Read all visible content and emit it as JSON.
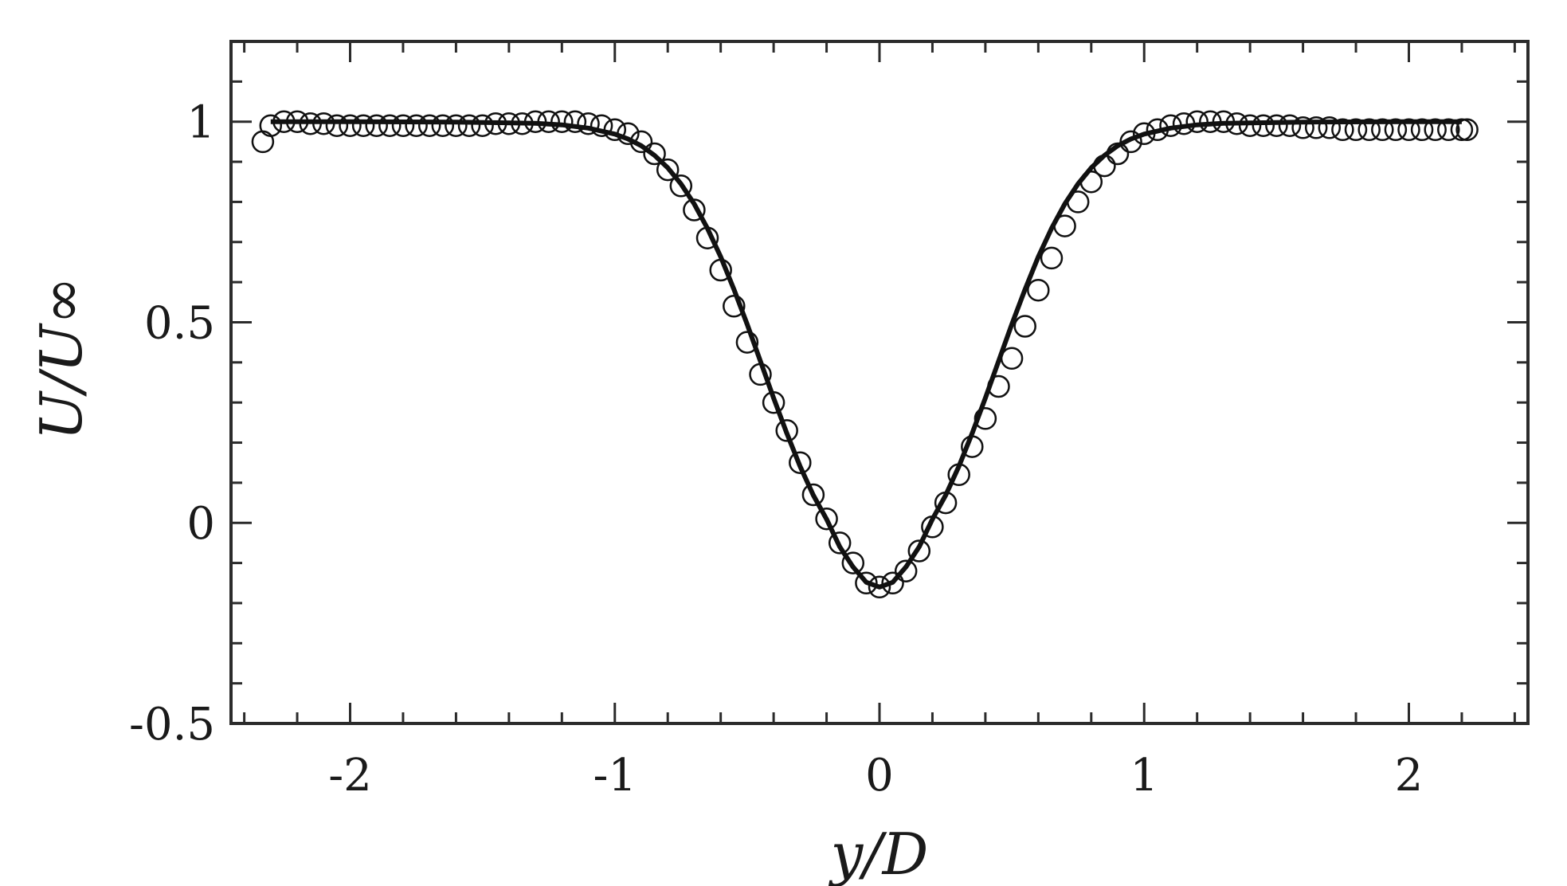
{
  "chart_data": {
    "type": "scatter",
    "xlabel": "y/D",
    "ylabel": "U/U∞",
    "xlim": [
      -2.45,
      2.45
    ],
    "ylim": [
      -0.5,
      1.2
    ],
    "x_ticks": [
      {
        "value": -2,
        "label": "-2"
      },
      {
        "value": -1,
        "label": "-1"
      },
      {
        "value": 0,
        "label": "0"
      },
      {
        "value": 1,
        "label": "1"
      },
      {
        "value": 2,
        "label": "2"
      }
    ],
    "y_ticks": [
      {
        "value": -0.5,
        "label": "-0.5"
      },
      {
        "value": 0,
        "label": "0"
      },
      {
        "value": 0.5,
        "label": "0.5"
      },
      {
        "value": 1,
        "label": "1"
      }
    ],
    "x_minor_step": 0.2,
    "y_minor_step": 0.1,
    "grid": false,
    "series": [
      {
        "marker": "open-circle",
        "color": "#111111",
        "x": [
          -2.33,
          -2.3,
          -2.25,
          -2.2,
          -2.15,
          -2.1,
          -2.05,
          -2.0,
          -1.95,
          -1.9,
          -1.85,
          -1.8,
          -1.75,
          -1.7,
          -1.65,
          -1.6,
          -1.55,
          -1.5,
          -1.45,
          -1.4,
          -1.35,
          -1.3,
          -1.25,
          -1.2,
          -1.15,
          -1.1,
          -1.05,
          -1.0,
          -0.95,
          -0.9,
          -0.85,
          -0.8,
          -0.75,
          -0.7,
          -0.65,
          -0.6,
          -0.55,
          -0.5,
          -0.45,
          -0.4,
          -0.35,
          -0.3,
          -0.25,
          -0.2,
          -0.15,
          -0.1,
          -0.05,
          0.0,
          0.05,
          0.1,
          0.15,
          0.2,
          0.25,
          0.3,
          0.35,
          0.4,
          0.45,
          0.5,
          0.55,
          0.6,
          0.65,
          0.7,
          0.75,
          0.8,
          0.85,
          0.9,
          0.95,
          1.0,
          1.05,
          1.1,
          1.15,
          1.2,
          1.25,
          1.3,
          1.35,
          1.4,
          1.45,
          1.5,
          1.55,
          1.6,
          1.65,
          1.7,
          1.75,
          1.8,
          1.85,
          1.9,
          1.95,
          2.0,
          2.05,
          2.1,
          2.15,
          2.2,
          2.22
        ],
        "y": [
          0.95,
          0.99,
          1.0,
          1.0,
          0.995,
          0.995,
          0.99,
          0.99,
          0.99,
          0.99,
          0.99,
          0.99,
          0.99,
          0.99,
          0.99,
          0.99,
          0.99,
          0.99,
          0.995,
          0.995,
          0.995,
          1.0,
          1.0,
          1.0,
          1.0,
          0.995,
          0.99,
          0.98,
          0.97,
          0.95,
          0.92,
          0.88,
          0.84,
          0.78,
          0.71,
          0.63,
          0.54,
          0.45,
          0.37,
          0.3,
          0.23,
          0.15,
          0.07,
          0.01,
          -0.05,
          -0.1,
          -0.15,
          -0.16,
          -0.15,
          -0.12,
          -0.07,
          -0.01,
          0.05,
          0.12,
          0.19,
          0.26,
          0.34,
          0.41,
          0.49,
          0.58,
          0.66,
          0.74,
          0.8,
          0.85,
          0.89,
          0.92,
          0.95,
          0.97,
          0.98,
          0.99,
          0.995,
          1.0,
          1.0,
          1.0,
          0.995,
          0.99,
          0.99,
          0.99,
          0.99,
          0.985,
          0.985,
          0.985,
          0.98,
          0.98,
          0.98,
          0.98,
          0.98,
          0.98,
          0.98,
          0.98,
          0.98,
          0.98,
          0.98
        ]
      },
      {
        "type": "line",
        "color": "#111111",
        "x": [
          -2.3,
          -2.0,
          -1.6,
          -1.3,
          -1.2,
          -1.1,
          -1.0,
          -0.95,
          -0.9,
          -0.85,
          -0.8,
          -0.75,
          -0.7,
          -0.65,
          -0.6,
          -0.55,
          -0.5,
          -0.45,
          -0.4,
          -0.35,
          -0.3,
          -0.25,
          -0.2,
          -0.15,
          -0.1,
          -0.05,
          0.0,
          0.05,
          0.1,
          0.15,
          0.2,
          0.25,
          0.3,
          0.35,
          0.4,
          0.45,
          0.5,
          0.55,
          0.6,
          0.65,
          0.7,
          0.75,
          0.8,
          0.85,
          0.9,
          0.95,
          1.0,
          1.1,
          1.2,
          1.3,
          1.6,
          2.0,
          2.2
        ],
        "y": [
          1.0,
          1.0,
          0.999,
          0.996,
          0.992,
          0.984,
          0.969,
          0.957,
          0.94,
          0.916,
          0.885,
          0.845,
          0.795,
          0.734,
          0.663,
          0.582,
          0.495,
          0.403,
          0.311,
          0.223,
          0.141,
          0.069,
          0.009,
          -0.06,
          -0.11,
          -0.148,
          -0.16,
          -0.148,
          -0.11,
          -0.06,
          0.009,
          0.069,
          0.141,
          0.223,
          0.311,
          0.403,
          0.495,
          0.582,
          0.663,
          0.734,
          0.795,
          0.845,
          0.885,
          0.916,
          0.94,
          0.957,
          0.969,
          0.984,
          0.992,
          0.996,
          0.999,
          1.0,
          1.0
        ]
      }
    ]
  }
}
